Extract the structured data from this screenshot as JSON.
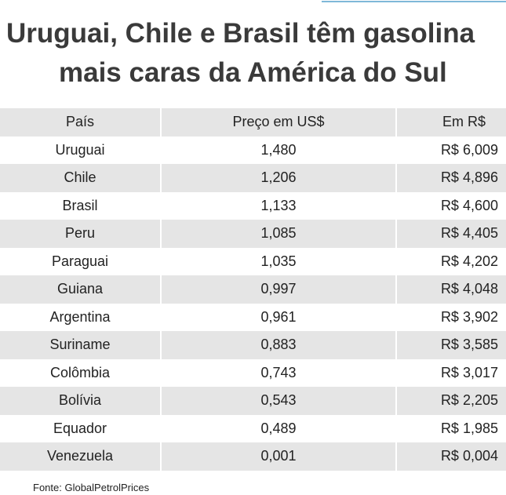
{
  "header": {
    "title": [
      "Uruguai, Chile e Brasil têm gasolina",
      "mais caras da América do Sul"
    ]
  },
  "table": {
    "columns": [
      "País",
      "Preço em US$",
      "Em R$"
    ],
    "rows": [
      [
        "Uruguai",
        "1,480",
        "R$ 6,009"
      ],
      [
        "Chile",
        "1,206",
        "R$ 4,896"
      ],
      [
        "Brasil",
        "1,133",
        "R$ 4,600"
      ],
      [
        "Peru",
        "1,085",
        "R$ 4,405"
      ],
      [
        "Paraguai",
        "1,035",
        "R$ 4,202"
      ],
      [
        "Guiana",
        "0,997",
        "R$ 4,048"
      ],
      [
        "Argentina",
        "0,961",
        "R$ 3,902"
      ],
      [
        "Suriname",
        "0,883",
        "R$ 3,585"
      ],
      [
        "Colômbia",
        "0,743",
        "R$ 3,017"
      ],
      [
        "Bolívia",
        "0,543",
        "R$ 2,205"
      ],
      [
        "Equador",
        "0,489",
        "R$ 1,985"
      ],
      [
        "Venezuela",
        "0,001",
        "R$ 0,004"
      ]
    ]
  },
  "footer": {
    "source": "Fonte: GlobalPetrolPrices"
  }
}
